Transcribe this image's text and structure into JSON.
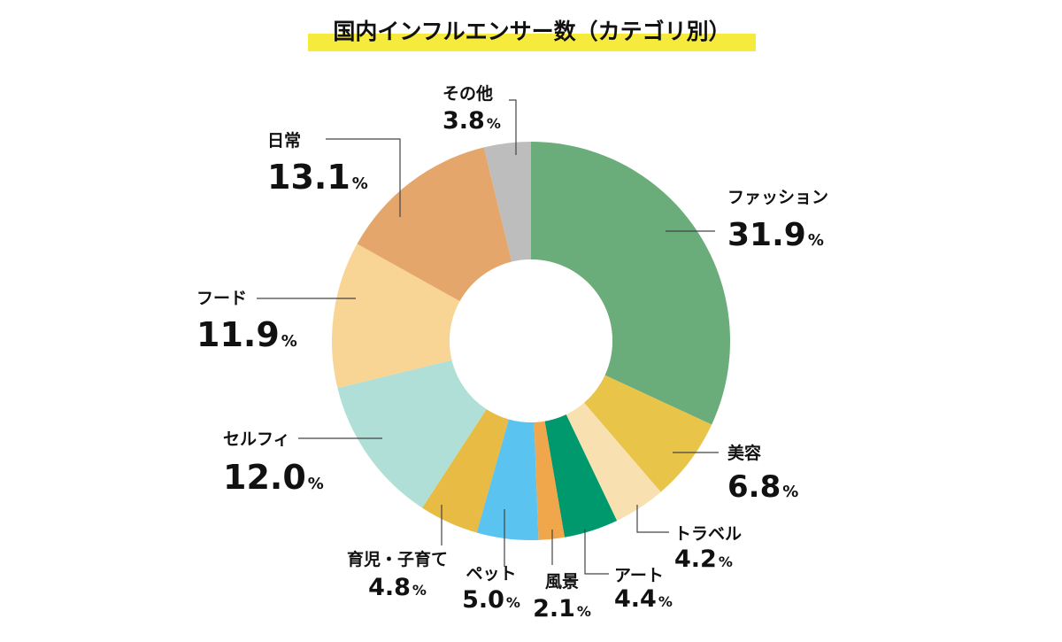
{
  "chart_data": {
    "type": "pie",
    "variant": "donut",
    "title": "国内インフルエンサー数（カテゴリ別）",
    "unit": "%",
    "start": "12 o'clock",
    "direction": "clockwise",
    "slices": [
      {
        "label": "ファッション",
        "value": 31.9,
        "color": "#6aad7a"
      },
      {
        "label": "美容",
        "value": 6.8,
        "color": "#e8c448"
      },
      {
        "label": "トラベル",
        "value": 4.2,
        "color": "#f8e0b0"
      },
      {
        "label": "アート",
        "value": 4.4,
        "color": "#00996e"
      },
      {
        "label": "風景",
        "value": 2.1,
        "color": "#f0a64a"
      },
      {
        "label": "ペット",
        "value": 5.0,
        "color": "#5bc3ef"
      },
      {
        "label": "育児・子育て",
        "value": 4.8,
        "color": "#e8bb45"
      },
      {
        "label": "セルフィ",
        "value": 12.0,
        "color": "#b0dfd8"
      },
      {
        "label": "フード",
        "value": 11.9,
        "color": "#f8d495"
      },
      {
        "label": "日常",
        "value": 13.1,
        "color": "#e4a66a"
      },
      {
        "label": "その他",
        "value": 3.8,
        "color": "#bdbdbd"
      }
    ],
    "title_highlight_color": "#f6ea3c"
  }
}
